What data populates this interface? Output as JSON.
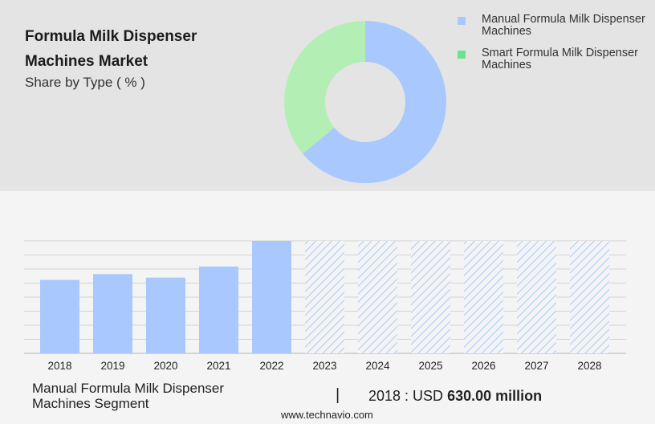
{
  "header": {
    "title": "Formula Milk Dispenser Machines Market",
    "subtitle": "Share by Type ( % )"
  },
  "legend": [
    {
      "label": "Manual Formula Milk Dispenser Machines",
      "color": "#a9c8fd"
    },
    {
      "label": "Smart Formula Milk Dispenser Machines",
      "color": "#6fe38c"
    }
  ],
  "chart_data": [
    {
      "type": "pie",
      "donut": true,
      "categories": [
        "Manual Formula Milk Dispenser Machines",
        "Smart Formula Milk Dispenser Machines"
      ],
      "values": [
        64,
        36
      ],
      "colors": [
        "#a9c8fd",
        "#b3efb5"
      ]
    },
    {
      "type": "bar",
      "categories": [
        "2018",
        "2019",
        "2020",
        "2021",
        "2022",
        "2023",
        "2024",
        "2025",
        "2026",
        "2027",
        "2028"
      ],
      "values": [
        630,
        680,
        650,
        745,
        965,
        965,
        965,
        965,
        965,
        965,
        965
      ],
      "forecast": [
        false,
        false,
        false,
        false,
        false,
        true,
        true,
        true,
        true,
        true,
        true
      ],
      "ylim": [
        0,
        965
      ],
      "grid": true,
      "bar_color": "#a9c8fd"
    }
  ],
  "footer": {
    "segment_label": "Manual Formula Milk Dispenser Machines Segment",
    "divider": "|",
    "value_prefix": "2018 : USD",
    "value_bold": "630.00 million"
  },
  "source": "www.technavio.com"
}
